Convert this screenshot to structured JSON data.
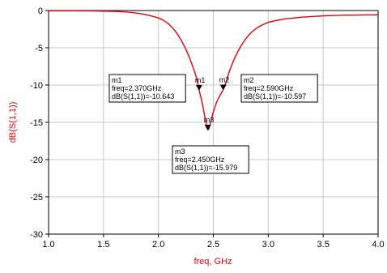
{
  "colors": {
    "curve": "#e8000b",
    "ylabel": "#e8000b",
    "xlabel": "#e8000b",
    "axis": "#000000",
    "grid": "#c8c8c8",
    "marker": "#000000",
    "text": "#000000"
  },
  "chart_data": {
    "type": "line",
    "title": "",
    "xlabel": "freq, GHz",
    "ylabel": "dB(S(1,1))",
    "xlim": [
      1.0,
      4.0
    ],
    "ylim": [
      -30,
      0
    ],
    "xticks": [
      1.0,
      1.5,
      2.0,
      2.5,
      3.0,
      3.5,
      4.0
    ],
    "xtick_labels": [
      "1.0",
      "1.5",
      "2.0",
      "2.5",
      "3.0",
      "3.5",
      "4.0"
    ],
    "yticks": [
      0,
      -5,
      -10,
      -15,
      -20,
      -25,
      -30
    ],
    "ytick_labels": [
      "0",
      "-5",
      "-10",
      "-15",
      "-20",
      "-25",
      "-30"
    ],
    "grid": true,
    "series": [
      {
        "x": [
          1.0,
          1.1,
          1.2,
          1.3,
          1.4,
          1.5,
          1.6,
          1.7,
          1.8,
          1.9,
          2.0,
          2.05,
          2.1,
          2.15,
          2.2,
          2.25,
          2.3,
          2.35,
          2.37,
          2.4,
          2.43,
          2.45,
          2.47,
          2.5,
          2.53,
          2.56,
          2.59,
          2.62,
          2.65,
          2.7,
          2.75,
          2.8,
          2.85,
          2.9,
          2.95,
          3.0,
          3.1,
          3.2,
          3.3,
          3.4,
          3.5,
          3.6,
          3.7,
          3.8,
          3.9,
          4.0
        ],
        "y": [
          -0.05,
          -0.05,
          -0.05,
          -0.05,
          -0.06,
          -0.08,
          -0.12,
          -0.2,
          -0.35,
          -0.6,
          -1.0,
          -1.35,
          -1.9,
          -2.7,
          -3.8,
          -5.2,
          -7.0,
          -9.2,
          -10.64,
          -12.5,
          -14.8,
          -15.98,
          -15.3,
          -13.6,
          -12.3,
          -11.4,
          -10.6,
          -9.4,
          -8.0,
          -6.2,
          -4.8,
          -3.7,
          -2.9,
          -2.3,
          -1.9,
          -1.6,
          -1.25,
          -1.05,
          -0.9,
          -0.8,
          -0.72,
          -0.66,
          -0.62,
          -0.6,
          -0.58,
          -0.57
        ]
      }
    ],
    "markers": [
      {
        "id": "m1",
        "x": 2.37,
        "y": -10.643,
        "lines": [
          "m1",
          "freq=2.370GHz",
          "dB(S(1,1))=-10.643"
        ]
      },
      {
        "id": "m2",
        "x": 2.59,
        "y": -10.597,
        "lines": [
          "m2",
          "freq=2.590GHz",
          "dB(S(1,1))=-10.597"
        ]
      },
      {
        "id": "m3",
        "x": 2.45,
        "y": -15.979,
        "lines": [
          "m3",
          "freq=2.450GHz",
          "dB(S(1,1))=-15.979"
        ]
      }
    ]
  }
}
